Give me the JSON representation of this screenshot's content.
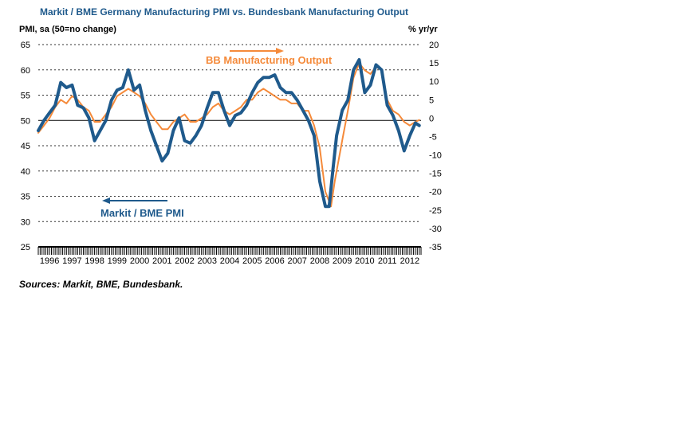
{
  "title": "Markit / BME Germany Manufacturing PMI vs. Bundesbank Manufacturing Output",
  "left_axis_label": "PMI, sa (50=no change)",
  "right_axis_label": "% yr/yr",
  "source_note": "Sources: Markit, BME, Bundesbank.",
  "colors": {
    "pmi": "#1f5a8c",
    "output": "#f58a3a",
    "title": "#1f5a8c"
  },
  "chart_data": {
    "type": "line",
    "title": "Markit / BME Germany Manufacturing PMI vs. Bundesbank Manufacturing Output",
    "xlabel": "",
    "ylabel": "PMI, sa (50=no change)",
    "y2label": "% yr/yr",
    "xlim": [
      1996.0,
      2013.0
    ],
    "ylim": [
      25,
      65
    ],
    "y2lim": [
      -35,
      20
    ],
    "yticks": [
      65,
      60,
      55,
      50,
      45,
      40,
      35,
      30,
      25
    ],
    "y2ticks": [
      20,
      15,
      10,
      5,
      0,
      -5,
      -10,
      -15,
      -20,
      -25,
      -30,
      -35
    ],
    "xtick_labels": [
      "1996",
      "1997",
      "1998",
      "1999",
      "2000",
      "2001",
      "2002",
      "2003",
      "2004",
      "2005",
      "2006",
      "2007",
      "2008",
      "2009",
      "2010",
      "2011",
      "2012"
    ],
    "grid": "dotted horizontal",
    "reference_line": 50,
    "series": [
      {
        "name": "Markit / BME PMI",
        "axis": "left",
        "color": "#1f5a8c",
        "x": [
          1996.0,
          1996.25,
          1996.5,
          1996.75,
          1997.0,
          1997.25,
          1997.5,
          1997.75,
          1998.0,
          1998.25,
          1998.5,
          1998.75,
          1999.0,
          1999.25,
          1999.5,
          1999.75,
          2000.0,
          2000.25,
          2000.5,
          2000.75,
          2001.0,
          2001.25,
          2001.5,
          2001.75,
          2002.0,
          2002.25,
          2002.5,
          2002.75,
          2003.0,
          2003.25,
          2003.5,
          2003.75,
          2004.0,
          2004.25,
          2004.5,
          2004.75,
          2005.0,
          2005.25,
          2005.5,
          2005.75,
          2006.0,
          2006.25,
          2006.5,
          2006.75,
          2007.0,
          2007.25,
          2007.5,
          2007.75,
          2008.0,
          2008.25,
          2008.5,
          2008.75,
          2008.92,
          2009.08,
          2009.25,
          2009.5,
          2009.75,
          2010.0,
          2010.25,
          2010.5,
          2010.75,
          2011.0,
          2011.25,
          2011.5,
          2011.75,
          2012.0,
          2012.25,
          2012.5,
          2012.75,
          2012.92
        ],
        "values": [
          48,
          50,
          51.5,
          53,
          57.5,
          56.5,
          57,
          53,
          52.5,
          50.5,
          46,
          48,
          50,
          54,
          56,
          56.5,
          60,
          56,
          57,
          52,
          48,
          45,
          42,
          43.5,
          48,
          50.5,
          46,
          45.5,
          47,
          49,
          52.5,
          55.5,
          55.5,
          52,
          49,
          51,
          51.5,
          53,
          55.5,
          57.5,
          58.5,
          58.5,
          59,
          56.5,
          55.5,
          55.5,
          54,
          52,
          50,
          47,
          38,
          33,
          33,
          40,
          47,
          52,
          54,
          60,
          62,
          55.5,
          57,
          61,
          60,
          53,
          51,
          48,
          44,
          47,
          49.5,
          49
        ]
      },
      {
        "name": "BB Manufacturing Output",
        "axis": "right",
        "color": "#f58a3a",
        "x": [
          1996.0,
          1996.25,
          1996.5,
          1996.75,
          1997.0,
          1997.25,
          1997.5,
          1997.75,
          1998.0,
          1998.25,
          1998.5,
          1998.75,
          1999.0,
          1999.25,
          1999.5,
          1999.75,
          2000.0,
          2000.25,
          2000.5,
          2000.75,
          2001.0,
          2001.25,
          2001.5,
          2001.75,
          2002.0,
          2002.25,
          2002.5,
          2002.75,
          2003.0,
          2003.25,
          2003.5,
          2003.75,
          2004.0,
          2004.25,
          2004.5,
          2004.75,
          2005.0,
          2005.25,
          2005.5,
          2005.75,
          2006.0,
          2006.25,
          2006.5,
          2006.75,
          2007.0,
          2007.25,
          2007.5,
          2007.75,
          2008.0,
          2008.25,
          2008.5,
          2008.75,
          2009.0,
          2009.17,
          2009.5,
          2009.75,
          2010.0,
          2010.25,
          2010.5,
          2010.75,
          2011.0,
          2011.25,
          2011.5,
          2011.75,
          2012.0,
          2012.25,
          2012.5,
          2012.75,
          2012.92
        ],
        "values": [
          -4,
          -2,
          0,
          3,
          5,
          4,
          6,
          5,
          3,
          2,
          -1,
          -1,
          1,
          3,
          6,
          7,
          8,
          7,
          6,
          4,
          1,
          -1,
          -3,
          -3,
          -1,
          0,
          1,
          -1,
          -1,
          0,
          1,
          3,
          4,
          2,
          1,
          2,
          3,
          5,
          5,
          7,
          8,
          7,
          6,
          5,
          5,
          4,
          4,
          2,
          2,
          -2,
          -8,
          -20,
          -24,
          -17,
          -6,
          2,
          11,
          15,
          13,
          12,
          14,
          13,
          5,
          2,
          1,
          -1,
          -2,
          -1,
          -0.5
        ]
      }
    ],
    "annotations": [
      "BB Manufacturing Output",
      "Markit / BME PMI"
    ]
  }
}
